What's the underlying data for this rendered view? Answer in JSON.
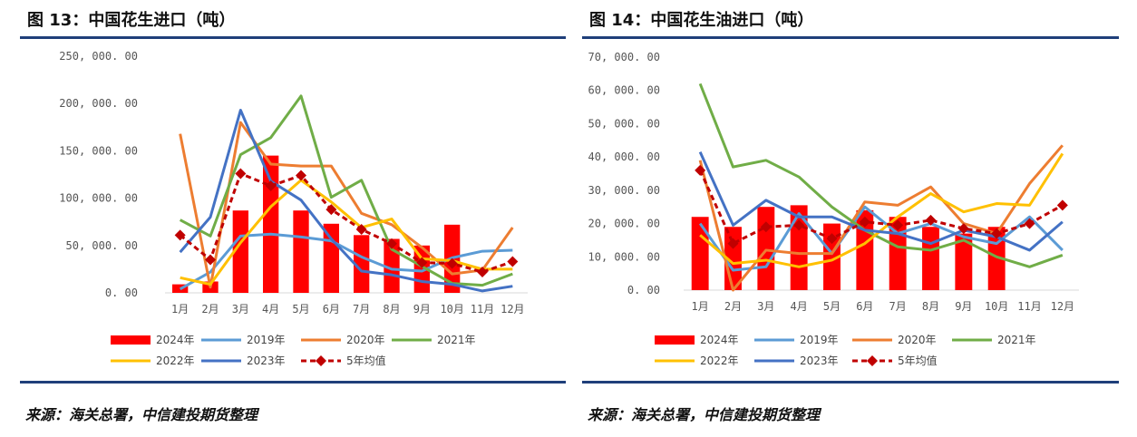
{
  "charts": [
    {
      "title": "图 13：中国花生进口（吨）",
      "source": "来源：海关总署，中信建投期货整理"
    },
    {
      "title": "图 14：中国花生油进口（吨）",
      "source": "来源：海关总署，中信建投期货整理"
    }
  ],
  "colors": {
    "rule": "#1f3f7a",
    "s2024": "#ff0000",
    "s2019": "#5b9bd5",
    "s2020": "#ed7d31",
    "s2021": "#70ad47",
    "s2022": "#ffc000",
    "s2023": "#4472c4",
    "avg": "#c00000"
  },
  "chart_data": [
    {
      "type": "bar",
      "categories": [
        "1月",
        "2月",
        "3月",
        "4月",
        "5月",
        "6月",
        "7月",
        "8月",
        "9月",
        "10月",
        "11月",
        "12月"
      ],
      "ylim": [
        0,
        250000
      ],
      "yticks": [
        0,
        50000,
        100000,
        150000,
        200000,
        250000
      ],
      "ytick_labels": [
        "0. 00",
        "50, 000. 00",
        "100, 000. 00",
        "150, 000. 00",
        "200, 000. 00",
        "250, 000. 00"
      ],
      "series": [
        {
          "name": "2024年",
          "kind": "bar",
          "values": [
            9000,
            12000,
            87000,
            145000,
            87000,
            73000,
            61000,
            57000,
            50000,
            72000,
            null,
            null
          ]
        },
        {
          "name": "2019年",
          "kind": "line",
          "values": [
            4000,
            22000,
            60000,
            62000,
            59000,
            55000,
            38000,
            25000,
            23000,
            37000,
            44000,
            45000
          ]
        },
        {
          "name": "2020年",
          "kind": "line",
          "values": [
            168000,
            6000,
            180000,
            136000,
            134000,
            134000,
            84000,
            72000,
            48000,
            20000,
            24000,
            69000
          ]
        },
        {
          "name": "2021年",
          "kind": "line",
          "values": [
            77000,
            60000,
            146000,
            164000,
            208000,
            101000,
            119000,
            46000,
            28000,
            10000,
            8000,
            20000
          ]
        },
        {
          "name": "2022年",
          "kind": "line",
          "values": [
            16000,
            9000,
            53000,
            91000,
            119000,
            96000,
            69000,
            78000,
            36000,
            34000,
            25000,
            25000
          ]
        },
        {
          "name": "2023年",
          "kind": "line",
          "values": [
            43000,
            80000,
            193000,
            118000,
            98000,
            57000,
            23000,
            19000,
            12000,
            9000,
            2000,
            7000
          ]
        },
        {
          "name": "5年均值",
          "kind": "avg",
          "values": [
            61000,
            35000,
            126000,
            113000,
            124000,
            88000,
            67000,
            52000,
            32000,
            31000,
            22000,
            33000
          ]
        }
      ]
    },
    {
      "type": "bar",
      "categories": [
        "1月",
        "2月",
        "3月",
        "4月",
        "5月",
        "6月",
        "7月",
        "8月",
        "9月",
        "10月",
        "11月",
        "12月"
      ],
      "ylim": [
        0,
        70000
      ],
      "yticks": [
        0,
        10000,
        20000,
        30000,
        40000,
        50000,
        60000,
        70000
      ],
      "ytick_labels": [
        "0. 00",
        "10, 000. 00",
        "20, 000. 00",
        "30, 000. 00",
        "40, 000. 00",
        "50, 000. 00",
        "60, 000. 00",
        "70, 000. 00"
      ],
      "series": [
        {
          "name": "2024年",
          "kind": "bar",
          "values": [
            22000,
            19000,
            25000,
            25500,
            20000,
            24000,
            22000,
            19000,
            17000,
            19000,
            null,
            null
          ]
        },
        {
          "name": "2019年",
          "kind": "line",
          "values": [
            20000,
            6000,
            7000,
            23000,
            11000,
            25000,
            17000,
            20000,
            16000,
            14000,
            22000,
            12000
          ]
        },
        {
          "name": "2020年",
          "kind": "line",
          "values": [
            39000,
            0,
            12000,
            11000,
            11000,
            26500,
            25500,
            31000,
            20000,
            17000,
            32000,
            43500
          ]
        },
        {
          "name": "2021年",
          "kind": "line",
          "values": [
            62000,
            37000,
            39000,
            34000,
            25000,
            18000,
            13000,
            12000,
            15000,
            10000,
            7000,
            10500
          ]
        },
        {
          "name": "2022年",
          "kind": "line",
          "values": [
            16500,
            8000,
            9000,
            7000,
            9000,
            14000,
            22000,
            29000,
            23500,
            26000,
            25500,
            41000
          ]
        },
        {
          "name": "2023年",
          "kind": "line",
          "values": [
            41500,
            19500,
            27000,
            22000,
            22000,
            18000,
            17000,
            14000,
            18000,
            16000,
            12000,
            20500
          ]
        },
        {
          "name": "5年均值",
          "kind": "avg",
          "values": [
            36000,
            14000,
            19000,
            19500,
            15500,
            20500,
            19500,
            21000,
            18500,
            17000,
            20000,
            25500
          ]
        }
      ]
    }
  ],
  "legend_layout": [
    [
      "2024年",
      "2019年",
      "2020年",
      "2021年"
    ],
    [
      "2022年",
      "2023年",
      "5年均值"
    ]
  ]
}
